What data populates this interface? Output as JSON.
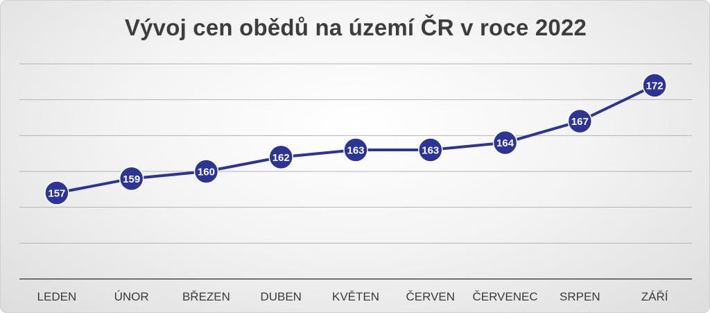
{
  "chart_data": {
    "type": "line",
    "title": "Vývoj cen obědů na území ČR v roce 2022",
    "categories": [
      "LEDEN",
      "ÚNOR",
      "BŘEZEN",
      "DUBEN",
      "KVĚTEN",
      "ČERVEN",
      "ČERVENEC",
      "SRPEN",
      "ZÁŘÍ"
    ],
    "series": [
      {
        "values": [
          157,
          159,
          160,
          162,
          163,
          163,
          164,
          167,
          172
        ]
      }
    ],
    "ylim": [
      145,
      175
    ],
    "ystep": 5,
    "grid": true,
    "show_y_tick_labels": false,
    "data_labels": true,
    "line_color": "#2c3596",
    "legend": "none"
  }
}
